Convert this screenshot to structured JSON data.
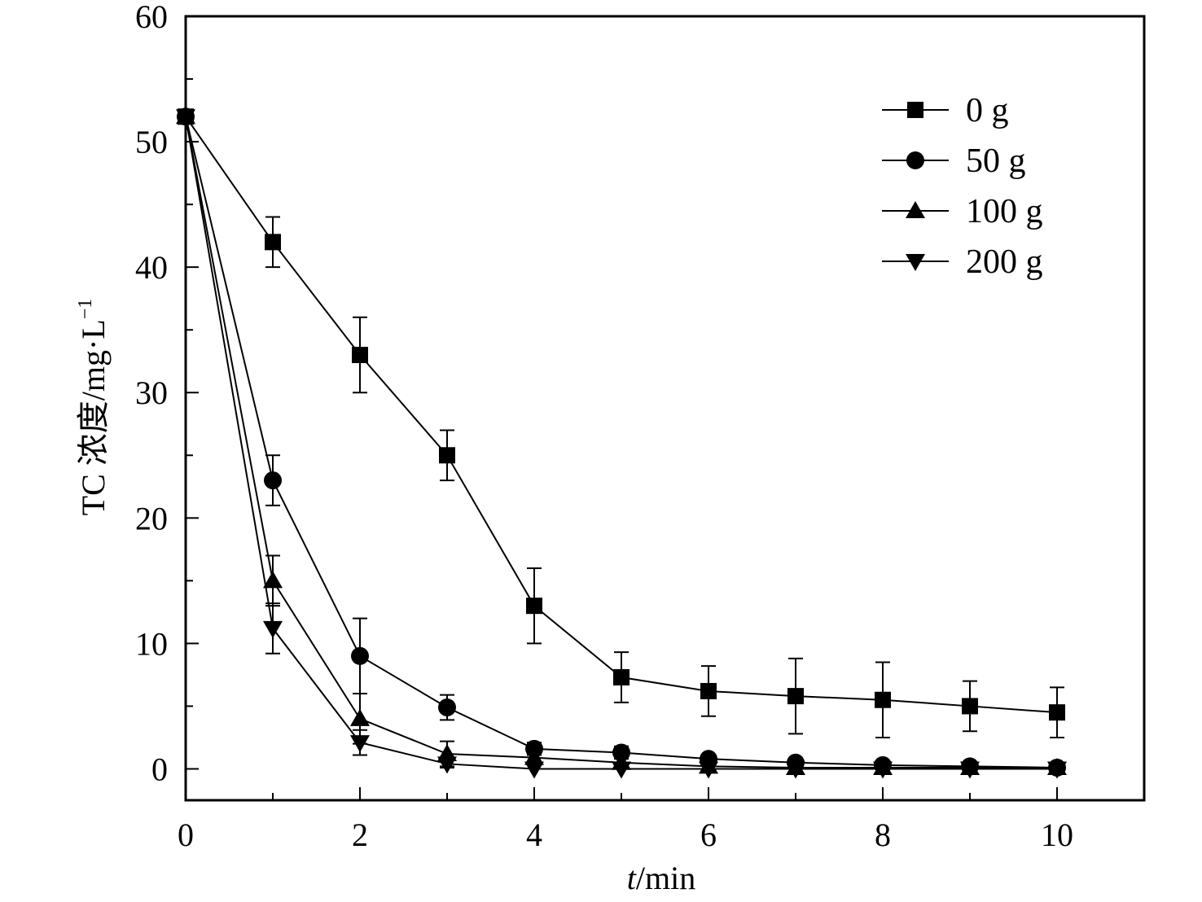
{
  "chart_data": {
    "type": "line",
    "xlabel_italic": "t",
    "xlabel_rest": "/min",
    "ylabel": "TC 浓度/mg·L",
    "ylabel_sup": "−1",
    "xlim": [
      0,
      11
    ],
    "ylim": [
      -2.5,
      60
    ],
    "xticks": [
      0,
      2,
      4,
      6,
      8,
      10
    ],
    "yticks": [
      0,
      10,
      20,
      30,
      40,
      50,
      60
    ],
    "grid": false,
    "legend_position": "top-right",
    "x": [
      0,
      1,
      2,
      3,
      4,
      5,
      6,
      7,
      8,
      9,
      10
    ],
    "series": [
      {
        "name": "0 g",
        "marker": "square",
        "values": [
          52,
          42,
          33,
          25,
          13,
          7.3,
          6.2,
          5.8,
          5.5,
          5.0,
          4.5
        ],
        "errors": [
          0,
          2,
          3,
          2,
          3,
          2,
          2,
          3,
          3,
          2,
          2
        ]
      },
      {
        "name": "50 g",
        "marker": "circle",
        "values": [
          52,
          23,
          9,
          4.9,
          1.6,
          1.3,
          0.8,
          0.5,
          0.3,
          0.2,
          0.1
        ],
        "errors": [
          0,
          2,
          3,
          1,
          0.5,
          0.5,
          0.3,
          0.2,
          0.2,
          0.2,
          0.1
        ]
      },
      {
        "name": "100 g",
        "marker": "triangle-up",
        "values": [
          52,
          15,
          4,
          1.2,
          0.9,
          0.5,
          0.2,
          0.1,
          0.1,
          0.1,
          0.1
        ],
        "errors": [
          0,
          2,
          2,
          1,
          0.4,
          0.3,
          0.2,
          0.1,
          0.1,
          0.1,
          0.1
        ]
      },
      {
        "name": "200 g",
        "marker": "triangle-down",
        "values": [
          52,
          11.2,
          2.1,
          0.4,
          0,
          0,
          0,
          0,
          0,
          0,
          0
        ],
        "errors": [
          0,
          2,
          1,
          0.3,
          0.1,
          0.1,
          0.1,
          0.1,
          0.1,
          0.1,
          0.1
        ]
      }
    ]
  }
}
